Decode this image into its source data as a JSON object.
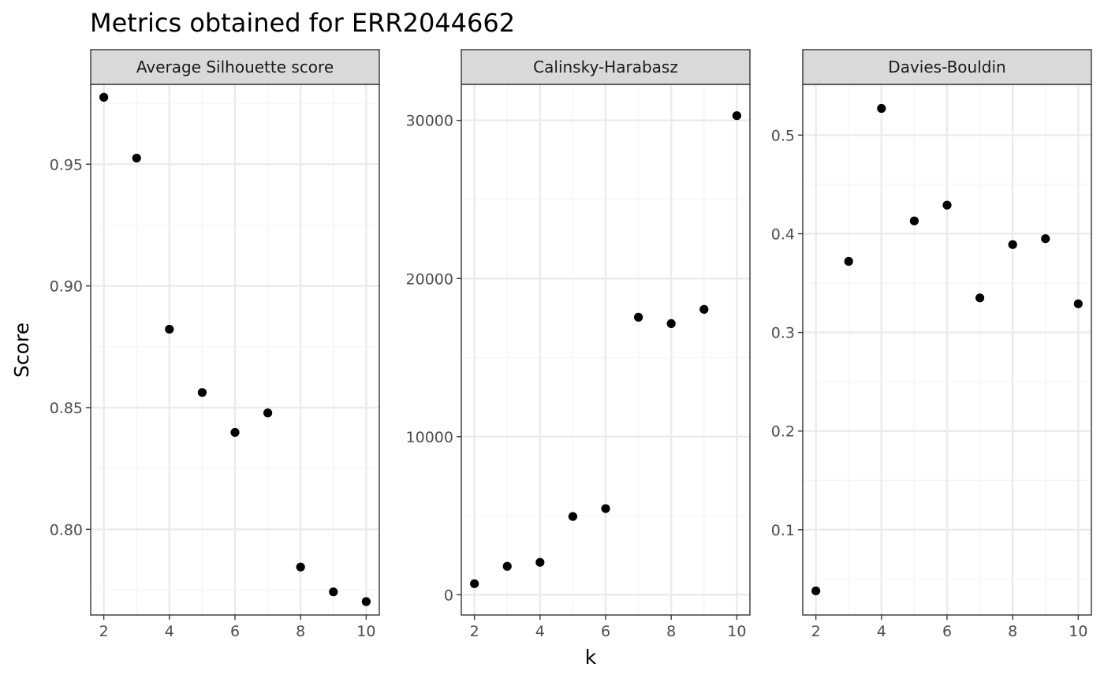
{
  "title": "Metrics obtained for  ERR2044662",
  "xlabel": "k",
  "ylabel": "Score",
  "style": {
    "panel_border": "#333333",
    "strip_fill": "#d9d9d9",
    "grid_major": "#ebebeb",
    "grid_minor": "#f5f5f5",
    "point_color": "#000000"
  },
  "chart_data": [
    {
      "type": "scatter",
      "panel": "Average Silhouette score",
      "x": [
        2,
        3,
        4,
        5,
        6,
        7,
        8,
        9,
        10
      ],
      "y": [
        0.9775,
        0.9525,
        0.8822,
        0.8562,
        0.8398,
        0.8478,
        0.7845,
        0.7743,
        0.7703
      ],
      "xlim": [
        1.6,
        10.4
      ],
      "ylim": [
        0.7648,
        0.9828
      ],
      "xticks": [
        2,
        4,
        6,
        8,
        10
      ],
      "yticks": [
        0.8,
        0.85,
        0.9,
        0.95
      ],
      "ytick_labels": [
        "0.80",
        "0.85",
        "0.90",
        "0.95"
      ],
      "grid": true
    },
    {
      "type": "scatter",
      "panel": "Calinsky-Harabasz",
      "x": [
        2,
        3,
        4,
        5,
        6,
        7,
        8,
        9,
        10
      ],
      "y": [
        700,
        1800,
        2050,
        4950,
        5450,
        17550,
        17150,
        18050,
        30300
      ],
      "xlim": [
        1.6,
        10.4
      ],
      "ylim": [
        -1280,
        32280
      ],
      "xticks": [
        2,
        4,
        6,
        8,
        10
      ],
      "yticks": [
        0,
        10000,
        20000,
        30000
      ],
      "ytick_labels": [
        "0",
        "10000",
        "20000",
        "30000"
      ],
      "grid": true
    },
    {
      "type": "scatter",
      "panel": "Davies-Bouldin",
      "x": [
        2,
        3,
        4,
        5,
        6,
        7,
        8,
        9,
        10
      ],
      "y": [
        0.038,
        0.372,
        0.527,
        0.413,
        0.429,
        0.335,
        0.389,
        0.395,
        0.329
      ],
      "xlim": [
        1.6,
        10.4
      ],
      "ylim": [
        0.0136,
        0.5514
      ],
      "xticks": [
        2,
        4,
        6,
        8,
        10
      ],
      "yticks": [
        0.1,
        0.2,
        0.3,
        0.4,
        0.5
      ],
      "ytick_labels": [
        "0.1",
        "0.2",
        "0.3",
        "0.4",
        "0.5"
      ],
      "grid": true
    }
  ]
}
